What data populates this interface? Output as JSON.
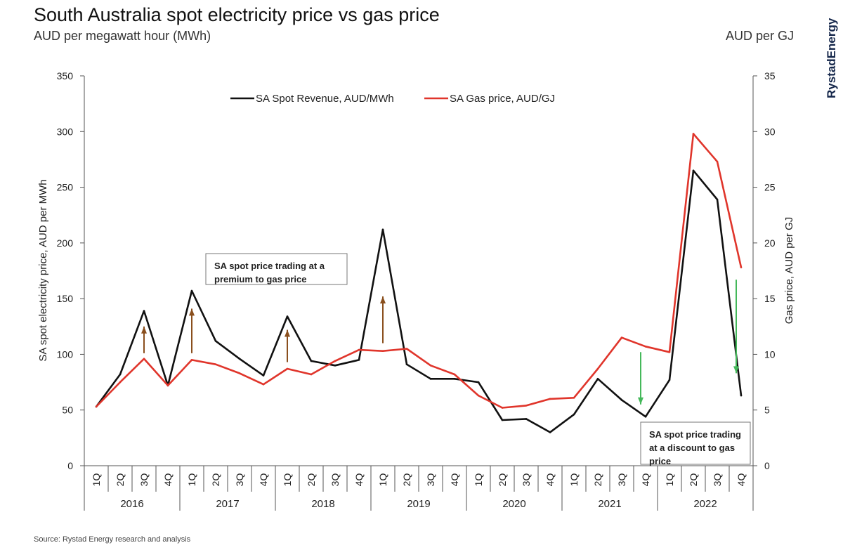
{
  "header": {
    "title": "South Australia spot electricity price vs gas price",
    "unit_left": "AUD per megawatt hour (MWh)",
    "unit_right": "AUD per GJ",
    "brand": "RystadEnergy"
  },
  "footer": {
    "source": "Source: Rystad Energy research and analysis"
  },
  "annotations": {
    "premium": [
      "SA spot price trading at a",
      "premium to gas price"
    ],
    "discount": [
      "SA spot price trading",
      "at a discount to gas",
      "price"
    ]
  },
  "colors": {
    "spot": "#111111",
    "gas": "#e0352b",
    "premium_arrow": "#8a4f1d",
    "discount_arrow": "#44b85a"
  },
  "chart_data": {
    "type": "line",
    "ylabel": "SA spot electricity price, AUD per MWh",
    "y2label": "Gas price, AUD per GJ",
    "ylim": [
      0,
      350
    ],
    "y2lim": [
      0,
      35
    ],
    "yticks": [
      0,
      50,
      100,
      150,
      200,
      250,
      300,
      350
    ],
    "y2ticks": [
      0,
      5,
      10,
      15,
      20,
      25,
      30,
      35
    ],
    "legend_position": "top-center",
    "grid": false,
    "quarters": [
      "1Q",
      "2Q",
      "3Q",
      "4Q",
      "1Q",
      "2Q",
      "3Q",
      "4Q",
      "1Q",
      "2Q",
      "3Q",
      "4Q",
      "1Q",
      "2Q",
      "3Q",
      "4Q",
      "1Q",
      "2Q",
      "3Q",
      "4Q",
      "1Q",
      "2Q",
      "3Q",
      "4Q",
      "1Q",
      "2Q",
      "3Q",
      "4Q"
    ],
    "years": [
      "2016",
      "2017",
      "2018",
      "2019",
      "2020",
      "2021",
      "2022"
    ],
    "series": [
      {
        "name": "SA Spot Revenue, AUD/MWh",
        "axis": "left",
        "values": [
          53,
          82,
          139,
          72,
          157,
          112,
          96,
          81,
          134,
          94,
          90,
          95,
          212,
          91,
          78,
          78,
          75,
          41,
          42,
          30,
          46,
          78,
          59,
          44,
          77,
          265,
          239,
          63
        ]
      },
      {
        "name": "SA Gas price, AUD/GJ",
        "axis": "right",
        "values": [
          5.3,
          7.5,
          9.6,
          7.2,
          9.5,
          9.1,
          8.3,
          7.3,
          8.7,
          8.2,
          9.4,
          10.4,
          10.3,
          10.5,
          9.0,
          8.2,
          6.3,
          5.2,
          5.4,
          6.0,
          6.1,
          8.7,
          11.5,
          10.7,
          10.2,
          29.8,
          27.3,
          17.8
        ]
      }
    ]
  }
}
